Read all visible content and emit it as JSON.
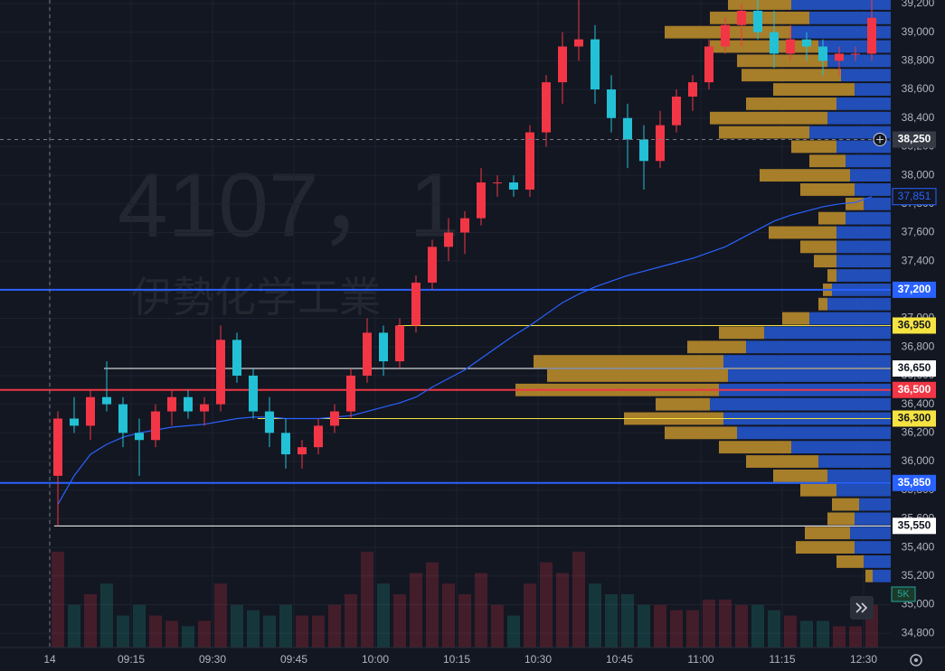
{
  "chart_data": {
    "type": "candlestick",
    "watermark_symbol": "4107，1",
    "watermark_name": "伊勢化学工業",
    "up_color": "#f23645",
    "down_color": "#22c1d6",
    "x": [
      "09:00",
      "09:03",
      "09:06",
      "09:09",
      "09:12",
      "09:15",
      "09:18",
      "09:21",
      "09:24",
      "09:27",
      "09:30",
      "09:33",
      "09:36",
      "09:39",
      "09:42",
      "09:45",
      "09:48",
      "09:51",
      "09:54",
      "09:57",
      "10:00",
      "10:03",
      "10:06",
      "10:09",
      "10:12",
      "10:15",
      "10:18",
      "10:21",
      "10:24",
      "10:27",
      "10:30",
      "10:33",
      "10:36",
      "10:39",
      "10:42",
      "10:45",
      "10:48",
      "10:51",
      "10:54",
      "10:57",
      "11:00",
      "11:03",
      "11:06",
      "11:09",
      "11:12",
      "11:15",
      "11:18",
      "11:21",
      "11:24",
      "11:27",
      "12:30"
    ],
    "open": [
      35900,
      36300,
      36250,
      36450,
      36400,
      36200,
      36150,
      36350,
      36450,
      36350,
      36400,
      36850,
      36600,
      36350,
      36200,
      36050,
      36100,
      36250,
      36350,
      36600,
      36900,
      36700,
      36950,
      37250,
      37500,
      37600,
      37700,
      37950,
      37950,
      37900,
      38300,
      38650,
      38900,
      38950,
      38600,
      38400,
      38250,
      38100,
      38350,
      38550,
      38650,
      38900,
      39050,
      39150,
      39000,
      38850,
      38950,
      38900,
      38800,
      38850,
      38850
    ],
    "high": [
      36350,
      36450,
      36500,
      36700,
      36450,
      36300,
      36400,
      36500,
      36500,
      36450,
      36950,
      36900,
      36650,
      36450,
      36300,
      36150,
      36300,
      36400,
      36650,
      37000,
      36950,
      37000,
      37300,
      37550,
      37700,
      37750,
      38050,
      38000,
      38000,
      38350,
      38700,
      39000,
      39230,
      39050,
      38700,
      38500,
      38350,
      38450,
      38600,
      38700,
      38950,
      39100,
      39200,
      39230,
      39150,
      39050,
      39000,
      38950,
      38900,
      38900,
      39230
    ],
    "low": [
      35550,
      36200,
      36150,
      36350,
      36100,
      35900,
      36100,
      36250,
      36300,
      36250,
      36350,
      36550,
      36300,
      36100,
      35950,
      35950,
      36050,
      36200,
      36300,
      36550,
      36600,
      36650,
      36900,
      37200,
      37400,
      37450,
      37650,
      37850,
      37850,
      37850,
      38200,
      38500,
      38800,
      38500,
      38300,
      38050,
      37900,
      38050,
      38300,
      38450,
      38600,
      38850,
      38900,
      38950,
      38750,
      38800,
      38800,
      38700,
      38700,
      38800,
      38800
    ],
    "close": [
      36300,
      36250,
      36450,
      36400,
      36200,
      36150,
      36350,
      36450,
      36350,
      36400,
      36850,
      36600,
      36350,
      36200,
      36050,
      36100,
      36250,
      36350,
      36600,
      36900,
      36700,
      36950,
      37250,
      37500,
      37600,
      37700,
      37950,
      37950,
      37900,
      38300,
      38650,
      38900,
      38950,
      38600,
      38400,
      38250,
      38100,
      38350,
      38550,
      38650,
      38900,
      39050,
      39150,
      39000,
      38850,
      38950,
      38900,
      38800,
      38850,
      38850,
      39100
    ],
    "volume": [
      9000,
      4000,
      5000,
      6000,
      3000,
      4000,
      3000,
      2500,
      2000,
      2500,
      6000,
      4000,
      3500,
      3000,
      4000,
      3000,
      3000,
      4000,
      5000,
      9000,
      6000,
      5000,
      7000,
      8000,
      6000,
      5000,
      7000,
      4000,
      3000,
      6000,
      8000,
      7000,
      9000,
      6000,
      5000,
      5000,
      4000,
      4000,
      3500,
      3500,
      4500,
      4500,
      4000,
      4000,
      3500,
      3000,
      2500,
      2500,
      2000,
      2000,
      4000
    ],
    "volume_tick": {
      "value": 5000,
      "label": "5K"
    },
    "vwap": {
      "color": "#2962ff",
      "values": [
        35700,
        35900,
        36050,
        36120,
        36170,
        36200,
        36220,
        36240,
        36250,
        36260,
        36280,
        36300,
        36310,
        36310,
        36300,
        36300,
        36300,
        36310,
        36320,
        36350,
        36380,
        36410,
        36450,
        36520,
        36580,
        36640,
        36720,
        36800,
        36880,
        36950,
        37030,
        37110,
        37170,
        37220,
        37260,
        37300,
        37330,
        37360,
        37390,
        37420,
        37460,
        37500,
        37560,
        37620,
        37680,
        37720,
        37750,
        37780,
        37800,
        37810,
        37851
      ],
      "last_label": "37,851"
    },
    "ylim": [
      34700,
      39225
    ],
    "yticks": [
      {
        "value": 34800,
        "label": "34,800"
      },
      {
        "value": 35000,
        "label": "35,000"
      },
      {
        "value": 35200,
        "label": "35,200"
      },
      {
        "value": 35400,
        "label": "35,400"
      },
      {
        "value": 35600,
        "label": "35,600"
      },
      {
        "value": 35800,
        "label": "35,800"
      },
      {
        "value": 36000,
        "label": "36,000"
      },
      {
        "value": 36200,
        "label": "36,200"
      },
      {
        "value": 36400,
        "label": "36,400"
      },
      {
        "value": 36600,
        "label": "36,600"
      },
      {
        "value": 36800,
        "label": "36,800"
      },
      {
        "value": 37000,
        "label": "37,000"
      },
      {
        "value": 37200,
        "label": "37,200"
      },
      {
        "value": 37400,
        "label": "37,400"
      },
      {
        "value": 37600,
        "label": "37,600"
      },
      {
        "value": 37800,
        "label": "37,800"
      },
      {
        "value": 38000,
        "label": "38,000"
      },
      {
        "value": 38200,
        "label": "38,200"
      },
      {
        "value": 38400,
        "label": "38,400"
      },
      {
        "value": 38600,
        "label": "38,600"
      },
      {
        "value": 38800,
        "label": "38,800"
      },
      {
        "value": 39000,
        "label": "39,000"
      },
      {
        "value": 39200,
        "label": "39,200"
      }
    ],
    "xticks": [
      {
        "value": "09:00",
        "label": "14"
      },
      "09:15",
      "09:30",
      "09:45",
      "10:00",
      "10:15",
      "10:30",
      "10:45",
      "11:00",
      "11:15",
      "12:30"
    ],
    "levels": [
      {
        "value": 37200,
        "label": "37,200",
        "color": "#2962ff",
        "text_color": "#ffffff",
        "width": 2
      },
      {
        "value": 36950,
        "label": "36,950",
        "color": "#f5e342",
        "text_color": "#131722",
        "width": 1
      },
      {
        "value": 36650,
        "label": "36,650",
        "color": "#ffffff",
        "text_color": "#131722",
        "width": 1
      },
      {
        "value": 36500,
        "label": "36,500",
        "color": "#f23645",
        "text_color": "#ffffff",
        "width": 2
      },
      {
        "value": 36300,
        "label": "36,300",
        "color": "#f5e342",
        "text_color": "#131722",
        "width": 1
      },
      {
        "value": 35850,
        "label": "35,850",
        "color": "#2962ff",
        "text_color": "#ffffff",
        "width": 2
      },
      {
        "value": 35550,
        "label": "35,550",
        "color": "#ffffff",
        "text_color": "#131722",
        "width": 1
      }
    ],
    "crosshair": {
      "value": 38250,
      "label": "38,250"
    },
    "volume_profile": {
      "colors": [
        "#2454c9",
        "#b8892a"
      ],
      "prices": [
        35200,
        35300,
        35400,
        35500,
        35600,
        35700,
        35800,
        35900,
        36000,
        36100,
        36200,
        36300,
        36400,
        36500,
        36600,
        36700,
        36800,
        36900,
        37000,
        37100,
        37200,
        37300,
        37400,
        37500,
        37600,
        37700,
        37800,
        37900,
        38000,
        38100,
        38200,
        38300,
        38400,
        38500,
        38600,
        38700,
        38800,
        38900,
        39000,
        39100,
        39200
      ],
      "blue": [
        20,
        30,
        40,
        45,
        40,
        35,
        60,
        70,
        80,
        110,
        170,
        185,
        200,
        190,
        180,
        185,
        160,
        140,
        90,
        70,
        65,
        60,
        60,
        60,
        60,
        50,
        30,
        40,
        45,
        50,
        60,
        90,
        70,
        60,
        40,
        55,
        70,
        80,
        110,
        90,
        110
      ],
      "gold": [
        8,
        30,
        65,
        50,
        30,
        30,
        40,
        60,
        80,
        80,
        80,
        110,
        60,
        225,
        200,
        210,
        65,
        50,
        30,
        10,
        10,
        10,
        25,
        40,
        75,
        30,
        20,
        60,
        100,
        40,
        50,
        100,
        130,
        100,
        90,
        110,
        100,
        120,
        140,
        110,
        70
      ]
    }
  }
}
